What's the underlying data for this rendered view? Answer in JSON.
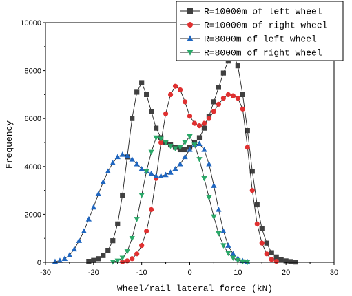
{
  "chart_data": {
    "type": "line",
    "title": "",
    "xlabel": "Wheel/rail lateral force (kN)",
    "ylabel": "Frequency",
    "xlim": [
      -30,
      30
    ],
    "ylim": [
      0,
      10000
    ],
    "xticks": [
      -30,
      -20,
      -10,
      0,
      10,
      20,
      30
    ],
    "yticks": [
      0,
      2000,
      4000,
      6000,
      8000,
      10000
    ],
    "grid": false,
    "legend_position": "top-right",
    "series": [
      {
        "name": "R=10000m of left wheel",
        "color": "#404040",
        "marker": "square",
        "x": [
          -21,
          -20,
          -19,
          -18,
          -17,
          -16,
          -15,
          -14,
          -13,
          -12,
          -11,
          -10,
          -9,
          -8,
          -7,
          -6,
          -5,
          -4,
          -3,
          -2,
          -1,
          0,
          1,
          2,
          3,
          4,
          5,
          6,
          7,
          8,
          9,
          10,
          11,
          12,
          13,
          14,
          15,
          16,
          17,
          18,
          19,
          20,
          21,
          22
        ],
        "y": [
          40,
          80,
          150,
          280,
          500,
          900,
          1600,
          2800,
          4400,
          6000,
          7100,
          7500,
          7000,
          6300,
          5600,
          5200,
          5000,
          4900,
          4800,
          4700,
          4700,
          4800,
          5000,
          5200,
          5600,
          6100,
          6700,
          7300,
          7900,
          8400,
          8700,
          8200,
          7000,
          5500,
          3800,
          2400,
          1400,
          800,
          400,
          220,
          120,
          60,
          30,
          10
        ]
      },
      {
        "name": "R=10000m of right wheel",
        "color": "#e03030",
        "marker": "circle",
        "x": [
          -14,
          -13,
          -12,
          -11,
          -10,
          -9,
          -8,
          -7,
          -6,
          -5,
          -4,
          -3,
          -2,
          -1,
          0,
          1,
          2,
          3,
          4,
          5,
          6,
          7,
          8,
          9,
          10,
          11,
          12,
          13,
          14,
          15,
          16,
          17,
          18
        ],
        "y": [
          20,
          60,
          150,
          350,
          700,
          1300,
          2200,
          3500,
          5000,
          6200,
          7000,
          7350,
          7200,
          6700,
          6100,
          5800,
          5700,
          5800,
          6000,
          6300,
          6600,
          6850,
          7000,
          6950,
          6850,
          6400,
          4800,
          3000,
          1600,
          800,
          350,
          120,
          40
        ]
      },
      {
        "name": "R=8000m of left wheel",
        "color": "#1f66c0",
        "marker": "triangle-up",
        "x": [
          -28,
          -27,
          -26,
          -25,
          -24,
          -23,
          -22,
          -21,
          -20,
          -19,
          -18,
          -17,
          -16,
          -15,
          -14,
          -13,
          -12,
          -11,
          -10,
          -9,
          -8,
          -7,
          -6,
          -5,
          -4,
          -3,
          -2,
          -1,
          0,
          1,
          2,
          3,
          4,
          5,
          6,
          7,
          8,
          9,
          10,
          11,
          12
        ],
        "y": [
          30,
          70,
          150,
          300,
          550,
          900,
          1300,
          1800,
          2300,
          2850,
          3350,
          3800,
          4150,
          4400,
          4500,
          4450,
          4300,
          4100,
          3900,
          3800,
          3700,
          3600,
          3600,
          3650,
          3750,
          3900,
          4100,
          4400,
          4700,
          4900,
          4950,
          4700,
          4100,
          3200,
          2200,
          1300,
          700,
          350,
          160,
          60,
          20
        ]
      },
      {
        "name": "R=8000m of right wheel",
        "color": "#2aa868",
        "marker": "triangle-down",
        "x": [
          -16,
          -15,
          -14,
          -13,
          -12,
          -11,
          -10,
          -9,
          -8,
          -7,
          -6,
          -5,
          -4,
          -3,
          -2,
          -1,
          0,
          1,
          2,
          3,
          4,
          5,
          6,
          7,
          8,
          9,
          10,
          11,
          12
        ],
        "y": [
          20,
          60,
          180,
          450,
          1000,
          1800,
          2800,
          3800,
          4600,
          5200,
          5150,
          5000,
          4850,
          4750,
          4800,
          5000,
          5250,
          4900,
          4300,
          3500,
          2700,
          1900,
          1200,
          700,
          380,
          180,
          80,
          30,
          10
        ]
      }
    ]
  }
}
